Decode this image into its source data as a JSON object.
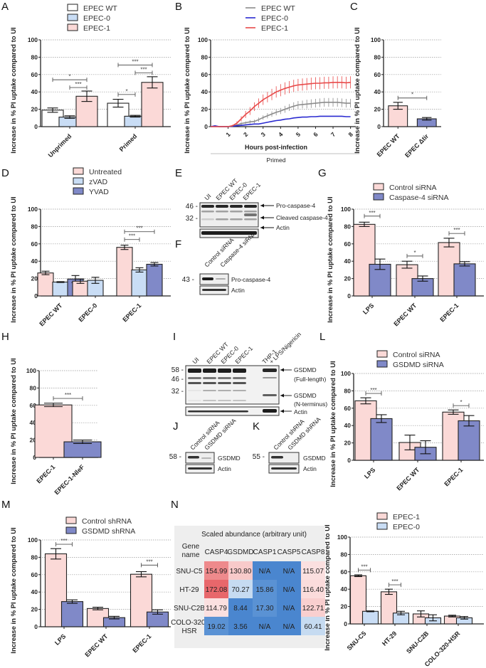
{
  "figure": {
    "panel_labels": [
      "A",
      "B",
      "C",
      "D",
      "E",
      "F",
      "G",
      "H",
      "I",
      "J",
      "K",
      "L",
      "M",
      "N"
    ],
    "y_axis_label": "Increase in % PI uptake compared to UI"
  },
  "colors": {
    "white_fill": "#ffffff",
    "light_blue_fill": "#c9ddf5",
    "pink_fill": "#fbd9d7",
    "purple_fill": "#8089c8",
    "line_gray": "#8c8c8c",
    "line_blue": "#2a2ad0",
    "line_red": "#e84a4a"
  },
  "chart_data": [
    {
      "id": "A",
      "type": "bar",
      "title": "",
      "xlabel": "",
      "ylabel": "Increase in % PI uptake compared to UI",
      "ylim": [
        0,
        100
      ],
      "yticks": [
        0,
        20,
        40,
        60,
        80,
        100
      ],
      "grid": true,
      "legend": "top",
      "categories": [
        "Unprimed",
        "Primed"
      ],
      "series": [
        {
          "name": "EPEC WT",
          "color": "#ffffff",
          "values": [
            19,
            27
          ],
          "errors": [
            2.5,
            4.5
          ]
        },
        {
          "name": "EPEC-0",
          "color": "#c9ddf5",
          "values": [
            11,
            12
          ],
          "errors": [
            1.5,
            1
          ]
        },
        {
          "name": "EPEC-1",
          "color": "#fbd9d7",
          "values": [
            35,
            51
          ],
          "errors": [
            6,
            6.5
          ]
        }
      ],
      "annotations": [
        {
          "group": 0,
          "from": 0,
          "to": 2,
          "y": 54,
          "label": "*"
        },
        {
          "group": 0,
          "from": 1,
          "to": 2,
          "y": 45,
          "label": "***"
        },
        {
          "group": 1,
          "from": 0,
          "to": 1,
          "y": 37,
          "label": "*"
        },
        {
          "group": 1,
          "from": 1,
          "to": 2,
          "y": 62,
          "label": "***"
        },
        {
          "group": 1,
          "from": 0,
          "to": 2,
          "y": 71,
          "label": "***"
        }
      ]
    },
    {
      "id": "B",
      "type": "line",
      "title": "",
      "xlabel": "Hours post-infection",
      "xgroup_label": "Primed",
      "ylabel": "Increase in % PI uptake compared to UI",
      "ylim": [
        0,
        100
      ],
      "yticks": [
        0,
        20,
        40,
        60,
        80,
        100
      ],
      "xlim": [
        0,
        8.3
      ],
      "xticks": [
        1,
        2,
        3,
        4,
        5,
        6,
        7,
        8
      ],
      "grid": true,
      "legend": "top",
      "x": [
        0,
        0.25,
        0.5,
        0.75,
        1,
        1.25,
        1.5,
        1.75,
        2,
        2.25,
        2.5,
        2.75,
        3,
        3.25,
        3.5,
        3.75,
        4,
        4.25,
        4.5,
        4.75,
        5,
        5.25,
        5.5,
        5.75,
        6,
        6.25,
        6.5,
        6.75,
        7,
        7.25,
        7.5,
        7.75,
        8
      ],
      "series": [
        {
          "name": "EPEC WT",
          "color": "#8c8c8c",
          "values": [
            0,
            0.5,
            0,
            0,
            0,
            1,
            2,
            3.5,
            4.5,
            5.5,
            6,
            8,
            10.5,
            12.5,
            14.5,
            16.5,
            18,
            20,
            22,
            23.5,
            25,
            25.5,
            26,
            26.5,
            27,
            27.5,
            28,
            28,
            28,
            28,
            27.5,
            27,
            27
          ],
          "errors": [
            0.5,
            0.5,
            0.5,
            0.5,
            0.5,
            1,
            1,
            1.5,
            1.5,
            2,
            2,
            2.5,
            2.5,
            3,
            3,
            3.5,
            3.5,
            4,
            4,
            4.5,
            4.5,
            4.5,
            5,
            5,
            5,
            5,
            5,
            5,
            5,
            5,
            5,
            5,
            5
          ]
        },
        {
          "name": "EPEC-0",
          "color": "#2a2ad0",
          "values": [
            0,
            1,
            0,
            0,
            0,
            0.5,
            1,
            1.5,
            2,
            2.5,
            3,
            3,
            4,
            5,
            6,
            7,
            7.5,
            8.5,
            9,
            10,
            10.5,
            11,
            11,
            11.5,
            11.5,
            12,
            12,
            12,
            12,
            12,
            12,
            11.5,
            11.5
          ],
          "errors": [
            0.5,
            0.5,
            0.5,
            0.5,
            0.5,
            0.5,
            0.5,
            0.5,
            0.5,
            0.5,
            0.5,
            0.5,
            0.5,
            0.5,
            0.5,
            0.5,
            0.5,
            0.5,
            0.5,
            0.5,
            0.5,
            0.5,
            0.5,
            0.5,
            0.5,
            0.5,
            0.5,
            0.5,
            0.5,
            0.5,
            0.5,
            0.5,
            0.5
          ]
        },
        {
          "name": "EPEC-1",
          "color": "#e84a4a",
          "values": [
            0,
            0,
            0,
            0,
            0,
            1,
            4,
            9,
            14,
            18,
            23,
            27,
            31,
            34,
            37,
            40,
            42,
            44,
            45.5,
            47,
            48,
            48.5,
            49,
            49.5,
            50,
            50,
            50.5,
            50.5,
            51,
            51,
            51,
            50.5,
            51
          ],
          "errors": [
            0.5,
            0.5,
            0.5,
            0.5,
            0.5,
            1,
            2,
            3,
            4,
            4.5,
            5,
            5.5,
            6,
            6,
            6.5,
            6.5,
            7,
            7,
            7,
            7,
            7,
            7,
            7,
            7,
            7,
            7,
            7,
            7,
            7,
            7,
            7,
            7,
            7
          ]
        }
      ]
    },
    {
      "id": "C",
      "type": "bar",
      "title": "",
      "xlabel": "",
      "ylabel": "Increase in % PI uptake compared to UI",
      "ylim": [
        0,
        100
      ],
      "yticks": [
        0,
        20,
        40,
        60,
        80,
        100
      ],
      "grid": true,
      "categories": [
        "EPEC WT",
        "EPEC Δtir"
      ],
      "series": [
        {
          "name": "values",
          "colors": [
            "#fbd9d7",
            "#8089c8"
          ],
          "values": [
            24,
            9
          ],
          "errors": [
            4,
            1.5
          ]
        }
      ],
      "annotations": [
        {
          "from": 0,
          "to": 1,
          "y": 33,
          "label": "*"
        }
      ]
    },
    {
      "id": "D",
      "type": "bar",
      "title": "",
      "xlabel": "",
      "ylabel": "Increase in % PI uptake compared to UI",
      "ylim": [
        0,
        100
      ],
      "yticks": [
        0,
        20,
        40,
        60,
        80,
        100
      ],
      "grid": true,
      "legend": "top",
      "categories": [
        "EPEC WT",
        "EPEC-0",
        "EPEC-1"
      ],
      "series": [
        {
          "name": "Untreated",
          "color": "#fbd9d7",
          "values": [
            26.5,
            17,
            56
          ],
          "errors": [
            2,
            2.5,
            2.5
          ]
        },
        {
          "name": "zVAD",
          "color": "#c9ddf5",
          "values": [
            16,
            18,
            30
          ],
          "errors": [
            0.5,
            3.5,
            2.5
          ]
        },
        {
          "name": "YVAD",
          "color": "#8089c8",
          "values": [
            19.5,
            null,
            36.5
          ],
          "errors": [
            4,
            null,
            2
          ]
        }
      ],
      "annotations": [
        {
          "group": 2,
          "from": 0,
          "to": 1,
          "y": 65,
          "label": "***"
        },
        {
          "group": 2,
          "from": 0,
          "to": 2,
          "y": 74,
          "label": "***"
        }
      ]
    },
    {
      "id": "G",
      "type": "bar",
      "title": "",
      "xlabel": "",
      "ylabel": "Increase in % PI uptake compared to UI",
      "ylim": [
        0,
        100
      ],
      "yticks": [
        0,
        20,
        40,
        60,
        80,
        100
      ],
      "grid": true,
      "legend": "top",
      "categories": [
        "LPS",
        "EPEC WT",
        "EPEC-1"
      ],
      "series": [
        {
          "name": "Control siRNA",
          "color": "#fbd9d7",
          "values": [
            82.5,
            36,
            61.5
          ],
          "errors": [
            2.5,
            4,
            5
          ]
        },
        {
          "name": "Caspase-4 siRNA",
          "color": "#8089c8",
          "values": [
            36.5,
            20,
            37
          ],
          "errors": [
            6,
            3,
            2.5
          ]
        }
      ],
      "annotations": [
        {
          "group": 0,
          "from": 0,
          "to": 1,
          "y": 92,
          "label": "***"
        },
        {
          "group": 1,
          "from": 0,
          "to": 1,
          "y": 46,
          "label": "*"
        },
        {
          "group": 2,
          "from": 0,
          "to": 1,
          "y": 72,
          "label": "***"
        }
      ]
    },
    {
      "id": "H",
      "type": "bar",
      "title": "",
      "xlabel": "",
      "ylabel": "Increase in % PI uptake compared to UI",
      "ylim": [
        0,
        100
      ],
      "yticks": [
        0,
        20,
        40,
        60,
        80,
        100
      ],
      "grid": true,
      "categories": [
        "EPEC-1",
        "EPEC-1-NleF"
      ],
      "series": [
        {
          "name": "values",
          "colors": [
            "#fbd9d7",
            "#8089c8"
          ],
          "values": [
            60.5,
            18
          ],
          "errors": [
            2,
            2
          ]
        }
      ],
      "annotations": [
        {
          "from": 0,
          "to": 1,
          "y": 68,
          "label": "***"
        }
      ]
    },
    {
      "id": "L",
      "type": "bar",
      "title": "",
      "xlabel": "",
      "ylabel": "Increase in % PI uptake compared to UI",
      "ylim": [
        0,
        100
      ],
      "yticks": [
        0,
        20,
        40,
        60,
        80,
        100
      ],
      "grid": true,
      "legend": "top",
      "categories": [
        "LPS",
        "EPEC WT",
        "EPEC-1"
      ],
      "series": [
        {
          "name": "Control siRNA",
          "color": "#fbd9d7",
          "values": [
            68.5,
            20.5,
            55.5
          ],
          "errors": [
            3.5,
            8.5,
            2.5
          ]
        },
        {
          "name": "GSDMD siRNA",
          "color": "#8089c8",
          "values": [
            48,
            15,
            45.5
          ],
          "errors": [
            4.5,
            7.5,
            6
          ]
        }
      ],
      "annotations": [
        {
          "group": 0,
          "from": 0,
          "to": 1,
          "y": 77,
          "label": "***"
        },
        {
          "group": 2,
          "from": 0,
          "to": 1,
          "y": 63,
          "label": "*"
        }
      ]
    },
    {
      "id": "M",
      "type": "bar",
      "title": "",
      "xlabel": "",
      "ylabel": "Increase in % PI uptake compared to UI",
      "ylim": [
        0,
        100
      ],
      "yticks": [
        0,
        20,
        40,
        60,
        80,
        100
      ],
      "grid": true,
      "legend": "top",
      "categories": [
        "LPS",
        "EPEC WT",
        "EPEC-1"
      ],
      "series": [
        {
          "name": "Control shRNA",
          "color": "#fbd9d7",
          "values": [
            84,
            21,
            60.5
          ],
          "errors": [
            6,
            1.5,
            3
          ]
        },
        {
          "name": "GSDMD shRNA",
          "color": "#8089c8",
          "values": [
            29,
            10.5,
            17
          ],
          "errors": [
            2,
            1.5,
            2.5
          ]
        }
      ],
      "annotations": [
        {
          "group": 0,
          "from": 0,
          "to": 1,
          "y": 95,
          "label": "***"
        },
        {
          "group": 2,
          "from": 0,
          "to": 1,
          "y": 71,
          "label": "***"
        }
      ]
    },
    {
      "id": "N-heatmap",
      "type": "heatmap",
      "title": "Scaled abundance (arbitrary unit)",
      "row_header": "Gene name",
      "columns": [
        "CASP4",
        "GSDMD",
        "CASP1",
        "CASP5",
        "CASP8"
      ],
      "rows": [
        "SNU-C5",
        "HT-29",
        "SNU-C2B",
        "COLO-320-HSR"
      ],
      "values": [
        [
          "154.99",
          "130.80",
          "N/A",
          "N/A",
          "115.07"
        ],
        [
          "172.08",
          "70.27",
          "15.86",
          "N/A",
          "116.40"
        ],
        [
          "114.79",
          "8.44",
          "17.30",
          "N/A",
          "122.71"
        ],
        [
          "19.02",
          "3.56",
          "N/A",
          "N/A",
          "60.41"
        ]
      ],
      "cell_colors": [
        [
          "#ee8a8c",
          "#f8caca",
          "#4a86cf",
          "#4a86cf",
          "#fbe0e0"
        ],
        [
          "#e8676b",
          "#c6dbf1",
          "#5a92d4",
          "#4a86cf",
          "#fbdcdc"
        ],
        [
          "#fbe0e0",
          "#4a86cf",
          "#5a92d4",
          "#4a86cf",
          "#f9cfcf"
        ],
        [
          "#5a92d4",
          "#4a86cf",
          "#4a86cf",
          "#4a86cf",
          "#c6dbf1"
        ]
      ]
    },
    {
      "id": "N-bar",
      "type": "bar",
      "title": "",
      "xlabel": "",
      "ylabel": "Increase in % PI uptake compared to UI",
      "ylim": [
        0,
        100
      ],
      "yticks": [
        0,
        20,
        40,
        60,
        80,
        100
      ],
      "grid": true,
      "legend": "top",
      "categories": [
        "SNU-C5",
        "HT-29",
        "SNU-C2B",
        "COLO-320-HSR"
      ],
      "series": [
        {
          "name": "EPEC-1",
          "color": "#fbd9d7",
          "values": [
            55.5,
            37,
            11.5,
            9
          ],
          "errors": [
            1,
            3,
            3.5,
            1
          ]
        },
        {
          "name": "EPEC-0",
          "color": "#c9ddf5",
          "values": [
            14.5,
            12.5,
            7,
            7
          ],
          "errors": [
            0.5,
            2,
            3.5,
            1.5
          ]
        }
      ],
      "annotations": [
        {
          "group": 0,
          "from": 0,
          "to": 1,
          "y": 62,
          "label": "***"
        },
        {
          "group": 1,
          "from": 0,
          "to": 1,
          "y": 45,
          "label": "***"
        }
      ]
    }
  ],
  "blots": {
    "E": {
      "lanes": [
        "UI",
        "EPEC WT",
        "EPEC-0",
        "EPEC-1"
      ],
      "markers": [
        "46 -",
        "32 -"
      ],
      "bands": [
        "Pro-caspase-4",
        "Cleaved caspase-4",
        "Actin"
      ]
    },
    "F": {
      "lanes": [
        "Control siRNA",
        "Caspase-4 siRNA"
      ],
      "markers": [
        "43 -"
      ],
      "bands": [
        "Pro-caspase-4",
        "Actin"
      ]
    },
    "I": {
      "lanes": [
        "UI",
        "EPEC WT",
        "EPEC-0",
        "EPEC-1",
        "THP-1",
        "+ LPS/Nigericin"
      ],
      "markers": [
        "58 -",
        "46 -",
        "32 -"
      ],
      "bands": [
        "GSDMD",
        "(Full-length)",
        "GSDMD",
        "(N-terminus)",
        "Actin"
      ]
    },
    "J": {
      "lanes": [
        "Control siRNA",
        "GSDMD siRNA"
      ],
      "markers": [
        "58 -"
      ],
      "bands": [
        "GSDMD",
        "Actin"
      ]
    },
    "K": {
      "lanes": [
        "Control shRNA",
        "GSDMD shRNA"
      ],
      "markers": [
        "55 -"
      ],
      "bands": [
        "GSDMD",
        "Actin"
      ]
    }
  }
}
